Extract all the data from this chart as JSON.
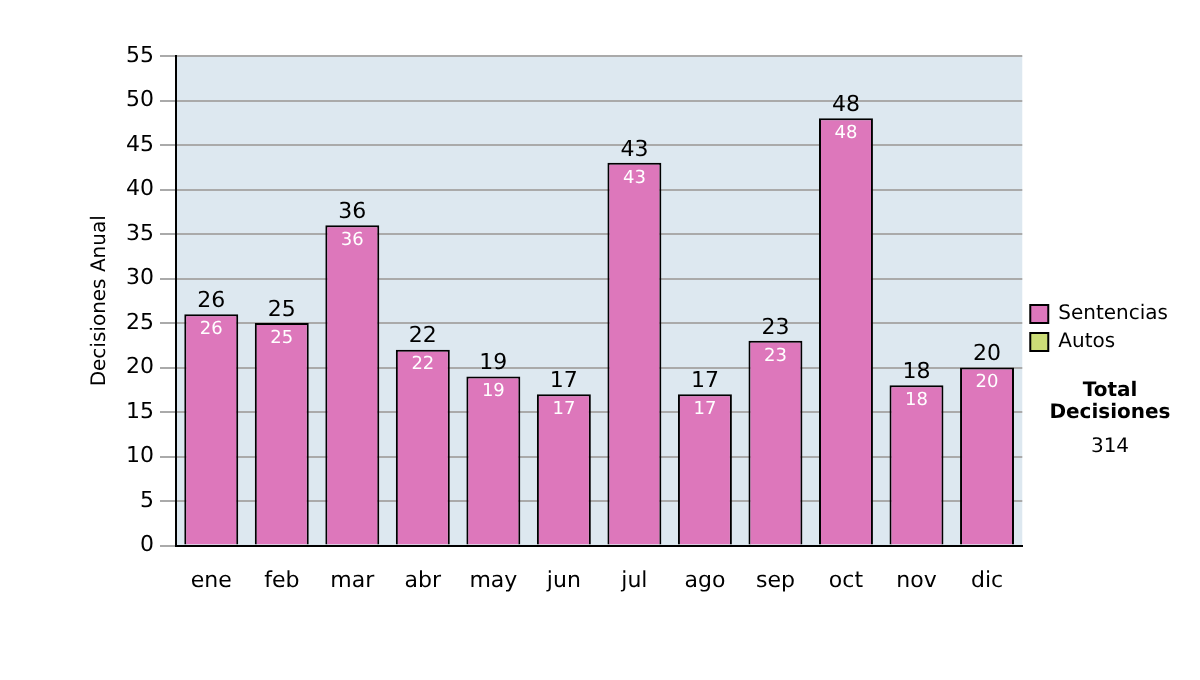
{
  "chart_data": {
    "type": "bar",
    "stacked": true,
    "ylabel": "Decisiones Anual",
    "categories": [
      "ene",
      "feb",
      "mar",
      "abr",
      "may",
      "jun",
      "jul",
      "ago",
      "sep",
      "oct",
      "nov",
      "dic"
    ],
    "series": [
      {
        "name": "Sentencias",
        "color": "#dd77bb",
        "values": [
          26,
          25,
          36,
          22,
          19,
          17,
          43,
          17,
          23,
          48,
          18,
          20
        ],
        "value_labels": [
          "26",
          "25",
          "36",
          "22",
          "19",
          "17",
          "43",
          "17",
          "23",
          "48",
          "18",
          "20"
        ]
      },
      {
        "name": "Autos",
        "color": "#ccdd77",
        "values": [
          0,
          0,
          0,
          0,
          0,
          0,
          0,
          0,
          0,
          0,
          0,
          0
        ]
      }
    ],
    "totals": [
      "26",
      "25",
      "36",
      "22",
      "19",
      "17",
      "43",
      "17",
      "23",
      "48",
      "18",
      "20"
    ],
    "ylim": [
      0,
      55
    ],
    "yticks": [
      0,
      5,
      10,
      15,
      20,
      25,
      30,
      35,
      40,
      45,
      50,
      55
    ],
    "grid": "y",
    "legend": "right",
    "annotations": [
      "Total Decisiones",
      "314"
    ]
  }
}
